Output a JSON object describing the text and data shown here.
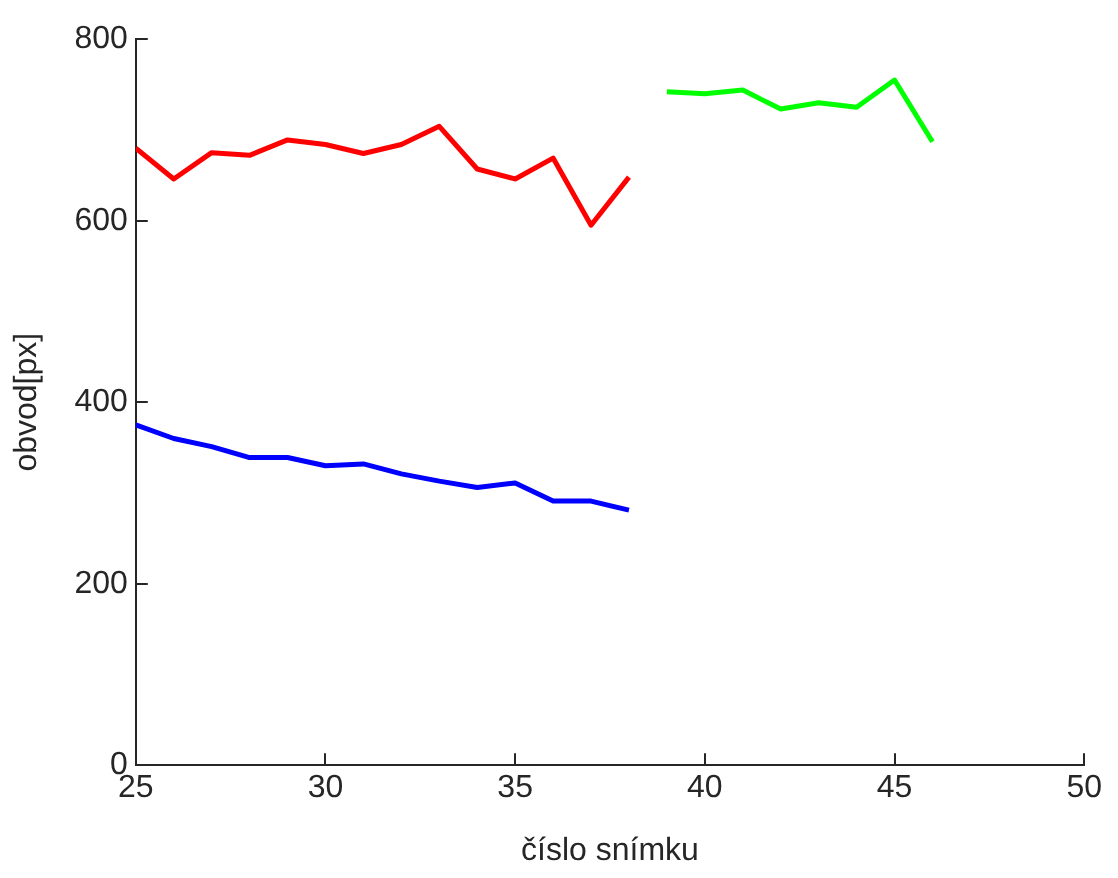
{
  "chart_data": {
    "type": "line",
    "xlabel": "číslo snímku",
    "ylabel": "obvod[px]",
    "xlim": [
      25,
      50
    ],
    "xticks": [
      25,
      30,
      35,
      40,
      45,
      50
    ],
    "ylim": [
      0,
      800
    ],
    "yticks": [
      0,
      200,
      400,
      600,
      800
    ],
    "grid": false,
    "legend": false,
    "marker": "none",
    "line_style": "solid",
    "series": [
      {
        "color": "#ff0000",
        "x": [
          25,
          26,
          27,
          28,
          29,
          30,
          31,
          32,
          33,
          34,
          35,
          36,
          37,
          38
        ],
        "values": [
          680,
          646,
          675,
          672,
          689,
          684,
          674,
          684,
          704,
          657,
          646,
          669,
          595,
          648
        ]
      },
      {
        "color": "#0000ff",
        "x": [
          25,
          26,
          27,
          28,
          29,
          30,
          31,
          32,
          33,
          34,
          35,
          36,
          37,
          38
        ],
        "values": [
          375,
          360,
          351,
          339,
          339,
          330,
          332,
          321,
          313,
          306,
          311,
          291,
          291,
          281
        ]
      },
      {
        "color": "#00ff00",
        "x": [
          39,
          40,
          41,
          42,
          43,
          44,
          45,
          46
        ],
        "values": [
          742,
          740,
          744,
          723,
          730,
          725,
          755,
          687
        ]
      }
    ]
  }
}
